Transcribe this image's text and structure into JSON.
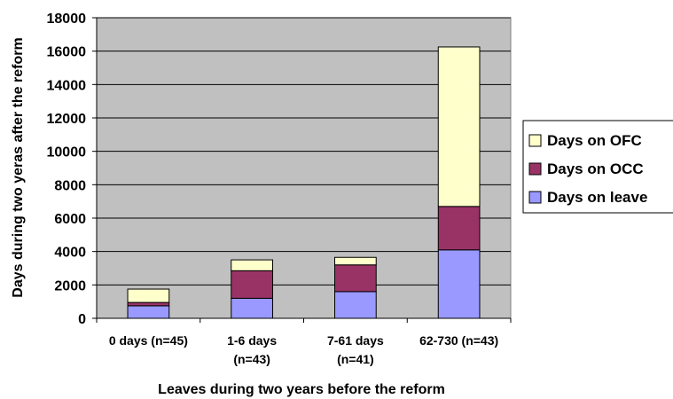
{
  "chart_data": {
    "type": "bar",
    "stacked": true,
    "title": "",
    "xlabel": "Leaves during two years before the reform",
    "ylabel": "Days during two yeras after the reform",
    "categories": [
      [
        "0 days (n=45)"
      ],
      [
        "1-6 days",
        "(n=43)"
      ],
      [
        "7-61 days",
        "(n=41)"
      ],
      [
        "62-730 (n=43)"
      ]
    ],
    "ylim": [
      0,
      18000
    ],
    "yticks": [
      0,
      2000,
      4000,
      6000,
      8000,
      10000,
      12000,
      14000,
      16000,
      18000
    ],
    "grid": true,
    "plot_background": "#c0c0c0",
    "legend_position": "right",
    "series": [
      {
        "name": "Days on leave",
        "color": "#9999ff",
        "values": [
          750,
          1200,
          1600,
          4100
        ]
      },
      {
        "name": "Days on OCC",
        "color": "#993366",
        "values": [
          200,
          1650,
          1600,
          2600
        ]
      },
      {
        "name": "Days on OFC",
        "color": "#ffffcc",
        "values": [
          800,
          650,
          450,
          9550
        ]
      }
    ],
    "legend_order": [
      "Days on OFC",
      "Days on OCC",
      "Days on leave"
    ]
  }
}
